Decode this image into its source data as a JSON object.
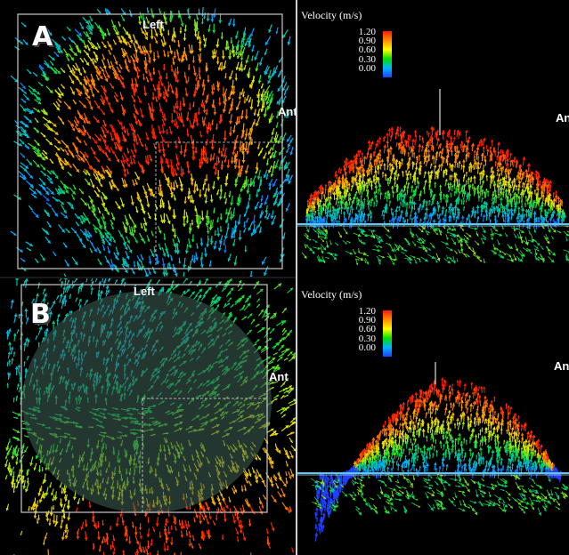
{
  "panels": {
    "a": {
      "letter": "A",
      "left_label": "Left",
      "ant_label": "Ant"
    },
    "b": {
      "letter": "B",
      "left_label": "Left",
      "ant_label": "Ant"
    }
  },
  "side_views": {
    "a": {
      "ant_label": "Ant"
    },
    "b": {
      "ant_label": "Ant"
    }
  },
  "legend": {
    "title": "Velocity (m/s)",
    "ticks": [
      "1.20",
      "0.90",
      "0.60",
      "0.30",
      "0.00"
    ],
    "colors": [
      "#ff1a00",
      "#ff8c00",
      "#ffff00",
      "#00e000",
      "#00b4ff",
      "#2040ff"
    ]
  }
}
